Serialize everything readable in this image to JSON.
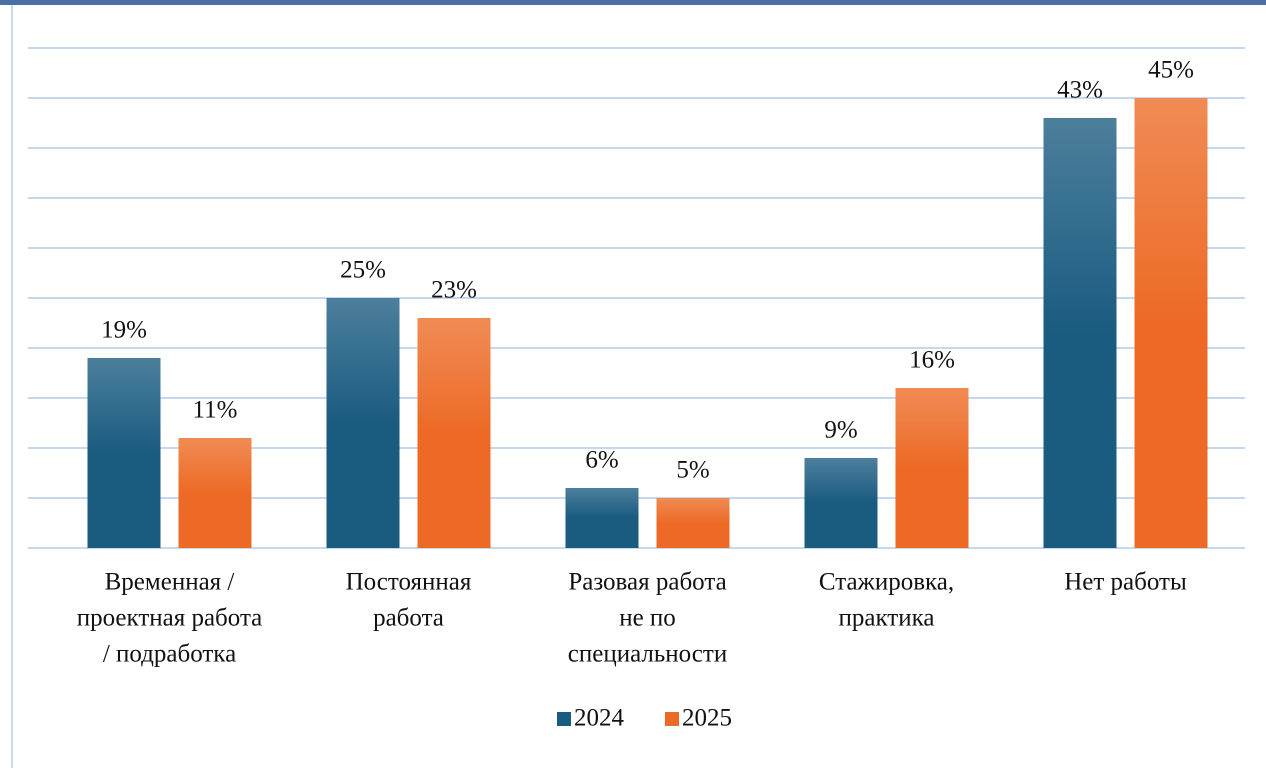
{
  "chart_data": {
    "type": "bar",
    "categories": [
      [
        "Временная /",
        "проектная работа",
        "/ подработка"
      ],
      [
        "Постоянная",
        "работа"
      ],
      [
        "Разовая работа",
        "не по",
        "специальности"
      ],
      [
        "Стажировка,",
        "практика"
      ],
      [
        "Нет работы"
      ]
    ],
    "series": [
      {
        "name": "2024",
        "color": "#1a5b80",
        "values": [
          19,
          25,
          6,
          9,
          43
        ],
        "value_labels": [
          "19%",
          "25%",
          "6%",
          "9%",
          "43%"
        ]
      },
      {
        "name": "2025",
        "color": "#ec6a25",
        "values": [
          11,
          23,
          5,
          16,
          45
        ],
        "value_labels": [
          "11%",
          "23%",
          "5%",
          "16%",
          "45%"
        ]
      }
    ],
    "ylim": [
      0,
      50
    ],
    "yticks": [
      0,
      5,
      10,
      15,
      20,
      25,
      30,
      35,
      40,
      45,
      50
    ],
    "grid": true,
    "legend": "bottom"
  }
}
